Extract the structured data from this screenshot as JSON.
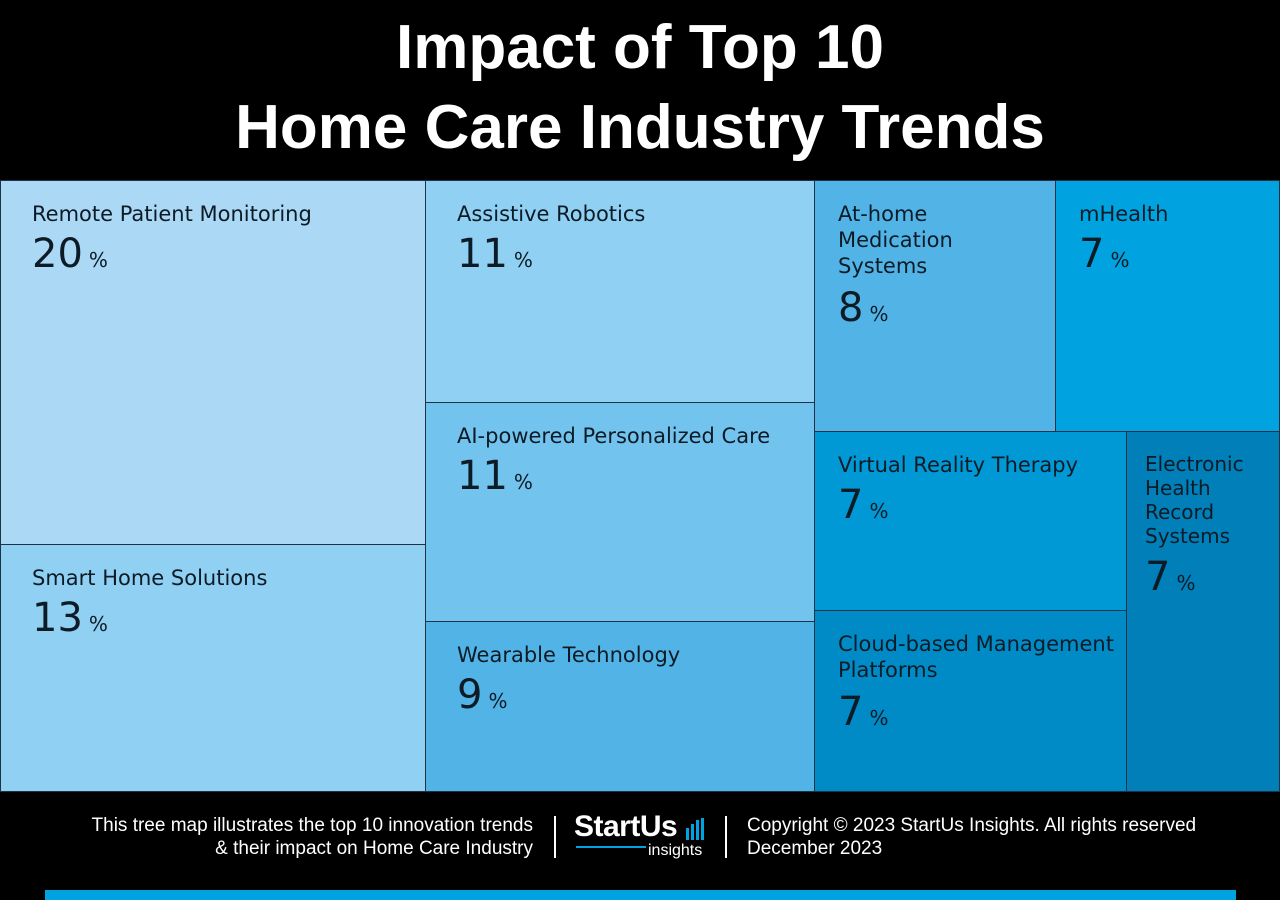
{
  "header": {
    "title_line1": "Impact of Top 10",
    "title_line2": "Home Care Industry Trends"
  },
  "chart_data": {
    "type": "treemap",
    "unit": "%",
    "items": [
      {
        "label": "Remote Patient Monitoring",
        "value": 20,
        "color": "#aad8f5"
      },
      {
        "label": "Smart Home Solutions",
        "value": 13,
        "color": "#90d0f2"
      },
      {
        "label": "Assistive Robotics",
        "value": 11,
        "color": "#90d0f2"
      },
      {
        "label": "AI-powered Personalized Care",
        "value": 11,
        "color": "#72c3ee"
      },
      {
        "label": "Wearable Technology",
        "value": 9,
        "color": "#52b4e6"
      },
      {
        "label": "At-home Medication Systems",
        "value": 8,
        "color": "#52b4e6"
      },
      {
        "label": "mHealth",
        "value": 7,
        "color": "#00a3e0"
      },
      {
        "label": "Virtual Reality Therapy",
        "value": 7,
        "color": "#0099d6"
      },
      {
        "label": "Cloud-based Management Platforms",
        "value": 7,
        "color": "#008bc7"
      },
      {
        "label": "Electronic Health Record Systems",
        "value": 7,
        "color": "#007fb8"
      }
    ]
  },
  "footer": {
    "description_line1": "This tree map illustrates the top 10 innovation trends",
    "description_line2": "& their impact on Home Care Industry",
    "logo_brand": "StartUs",
    "logo_sub": "insights",
    "copyright": "Copyright © 2023 StartUs Insights. All rights reserved",
    "date": "December 2023",
    "accent_color": "#00a3e0"
  }
}
